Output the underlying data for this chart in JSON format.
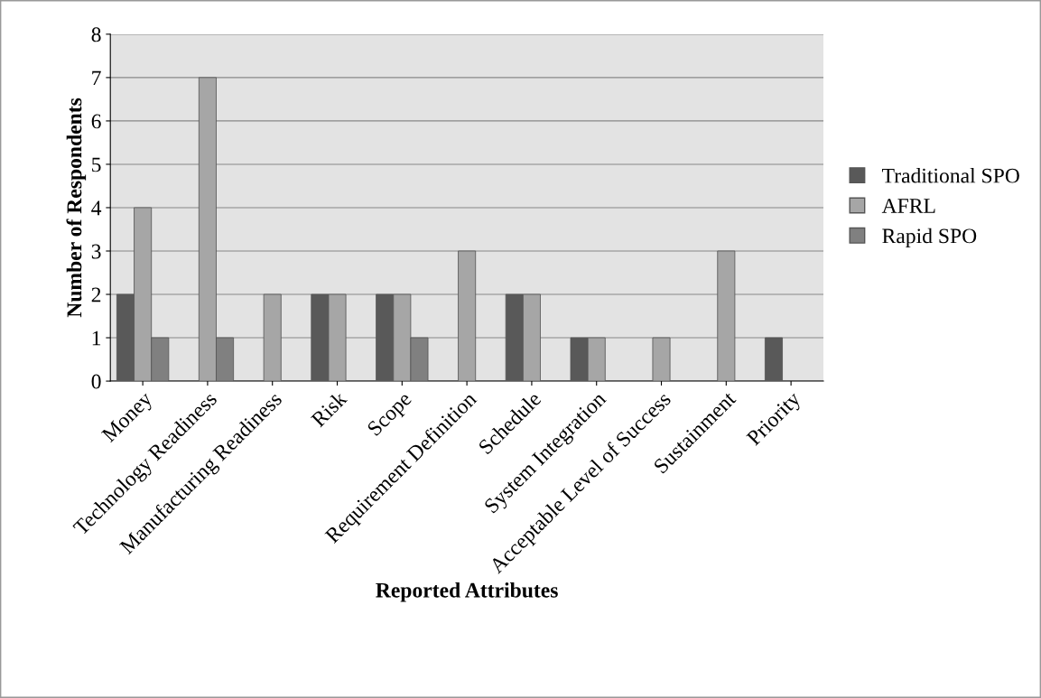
{
  "chart_data": {
    "type": "bar",
    "xlabel": "Reported Attributes",
    "ylabel": "Number of Respondents",
    "categories": [
      "Money",
      "Technology Readiness",
      "Manufacturing Readiness",
      "Risk",
      "Scope",
      "Requirement Definition",
      "Schedule",
      "System Integration",
      "Acceptable Level of Success",
      "Sustainment",
      "Priority"
    ],
    "series": [
      {
        "name": "Traditional SPO",
        "color": "#595959",
        "values": [
          2,
          0,
          0,
          2,
          2,
          0,
          2,
          1,
          0,
          0,
          1
        ]
      },
      {
        "name": "AFRL",
        "color": "#a6a6a6",
        "values": [
          4,
          7,
          2,
          2,
          2,
          3,
          2,
          1,
          1,
          3,
          0
        ]
      },
      {
        "name": "Rapid SPO",
        "color": "#808080",
        "values": [
          1,
          1,
          0,
          0,
          1,
          0,
          0,
          0,
          0,
          0,
          0
        ]
      }
    ],
    "ylim": [
      0,
      8
    ],
    "yticks": [
      0,
      1,
      2,
      3,
      4,
      5,
      6,
      7,
      8
    ],
    "grid": "y",
    "legend": "right"
  }
}
